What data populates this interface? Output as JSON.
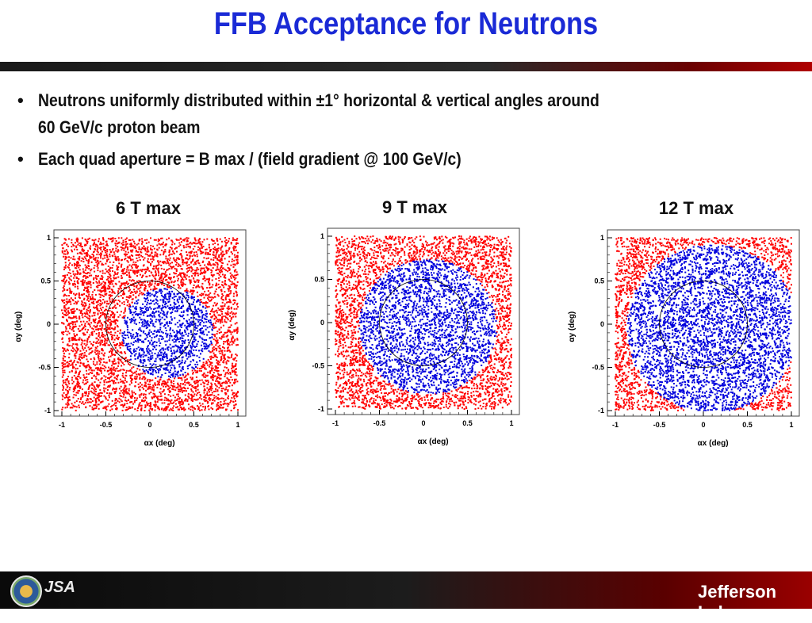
{
  "slide": {
    "title": "FFB Acceptance for Neutrons",
    "bullets": [
      {
        "line1": "Neutrons uniformly distributed within ±1° horizontal & vertical angles around",
        "line2": "60 GeV/c proton beam"
      },
      {
        "line1": "Each quad aperture = B max / (field gradient @ 100 GeV/c)",
        "line2": ""
      }
    ],
    "bullet_symbol": "•",
    "footer": {
      "jsa_label": "JSA",
      "jlab_label": "Jefferson Lab"
    }
  },
  "colors": {
    "title": "#1a2ad6",
    "outside": "#ff0000",
    "inside": "#0000dd",
    "circle": "#000000"
  },
  "chart_data": [
    {
      "type": "scatter",
      "title": "6 T max",
      "xlabel": "αx (deg)",
      "ylabel": "αy (deg)",
      "xlim": [
        -1,
        1
      ],
      "ylim": [
        -1,
        1
      ],
      "xticks": [
        "-1",
        "-0.5",
        "0",
        "0.5",
        "1"
      ],
      "yticks": [
        "-1",
        "-0.5",
        "0",
        "0.5",
        "1"
      ],
      "accepted_region": {
        "cx": 0.2,
        "cy": -0.1,
        "r": 0.52
      },
      "reference_circle": {
        "cx": 0.0,
        "cy": 0.0,
        "r": 0.5
      },
      "series": [
        {
          "values": "uniform |x|,|y|<1 outside accepted region"
        },
        {
          "values": "uniform inside accepted region"
        }
      ]
    },
    {
      "type": "scatter",
      "title": "9 T max",
      "xlabel": "αx (deg)",
      "ylabel": "αy (deg)",
      "xlim": [
        -1,
        1
      ],
      "ylim": [
        -1,
        1
      ],
      "xticks": [
        "-1",
        "-0.5",
        "0",
        "0.5",
        "1"
      ],
      "yticks": [
        "-1",
        "-0.5",
        "0",
        "0.5",
        "1"
      ],
      "accepted_region": {
        "cx": 0.05,
        "cy": -0.05,
        "r": 0.78
      },
      "reference_circle": {
        "cx": 0.0,
        "cy": 0.0,
        "r": 0.5
      },
      "series": [
        {
          "values": "uniform |x|,|y|<1 outside accepted region"
        },
        {
          "values": "uniform inside accepted region"
        }
      ]
    },
    {
      "type": "scatter",
      "title": "12 T max",
      "xlabel": "αx (deg)",
      "ylabel": "αy (deg)",
      "xlim": [
        -1,
        1
      ],
      "ylim": [
        -1,
        1
      ],
      "xticks": [
        "-1",
        "-0.5",
        "0",
        "0.5",
        "1"
      ],
      "yticks": [
        "-1",
        "-0.5",
        "0",
        "0.5",
        "1"
      ],
      "accepted_region": {
        "cx": 0.1,
        "cy": -0.05,
        "r": 0.97
      },
      "reference_circle": {
        "cx": 0.0,
        "cy": 0.0,
        "r": 0.5
      },
      "series": [
        {
          "values": "uniform |x|,|y|<1 outside accepted region"
        },
        {
          "values": "uniform inside accepted region"
        }
      ]
    }
  ]
}
